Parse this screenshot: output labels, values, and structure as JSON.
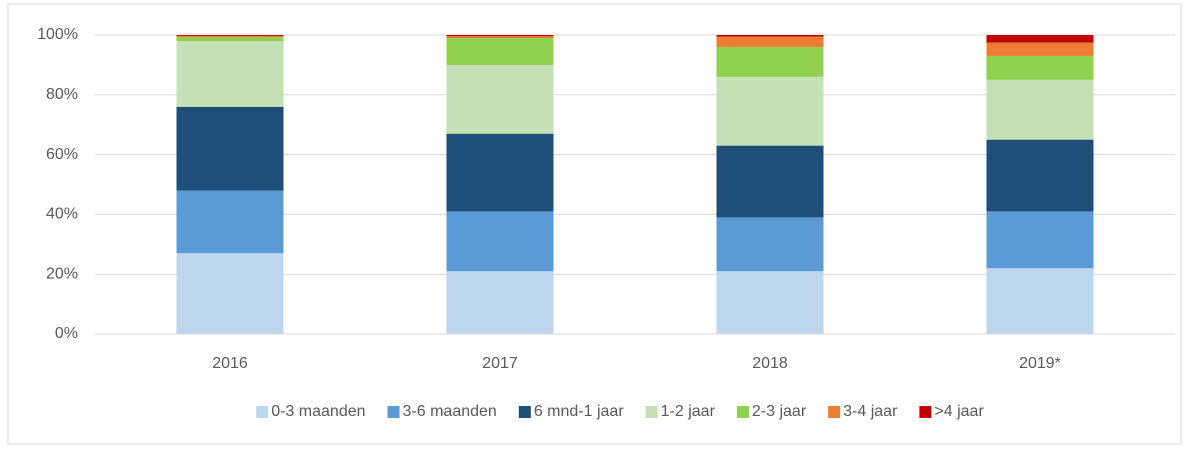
{
  "chart_data": {
    "type": "stacked_bar",
    "categories": [
      "2016",
      "2017",
      "2018",
      "2019*"
    ],
    "series": [
      {
        "name": "0-3 maanden",
        "color": "#bdd7ee",
        "values": [
          27,
          21,
          21,
          22
        ]
      },
      {
        "name": "3-6 maanden",
        "color": "#5b9bd5",
        "values": [
          21,
          20,
          18,
          19
        ]
      },
      {
        "name": "6 mnd-1 jaar",
        "color": "#1f4e79",
        "values": [
          28,
          26,
          24,
          24
        ]
      },
      {
        "name": "1-2 jaar",
        "color": "#c5e0b4",
        "values": [
          22,
          23,
          23,
          20
        ]
      },
      {
        "name": "2-3 jaar",
        "color": "#92d050",
        "values": [
          1.3,
          9,
          10,
          8
        ]
      },
      {
        "name": "3-4 jaar",
        "color": "#ed7d31",
        "values": [
          0.4,
          0.6,
          3.5,
          4.5
        ]
      },
      {
        "name": ">4 jaar",
        "color": "#c00000",
        "values": [
          0.3,
          0.4,
          0.5,
          2.5
        ]
      }
    ],
    "ylim": [
      0,
      100
    ],
    "yticks": [
      {
        "value": 0,
        "label": "0%"
      },
      {
        "value": 20,
        "label": "20%"
      },
      {
        "value": 40,
        "label": "40%"
      },
      {
        "value": 60,
        "label": "60%"
      },
      {
        "value": 80,
        "label": "80%"
      },
      {
        "value": 100,
        "label": "100%"
      }
    ],
    "grid": true,
    "legend": "bottom"
  }
}
